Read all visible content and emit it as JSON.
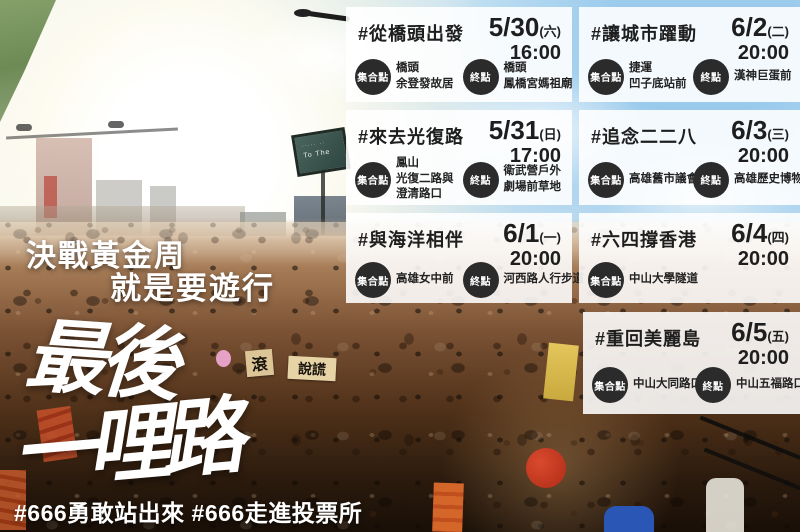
{
  "poster": {
    "headline_line1": "決戰黃金周",
    "headline_line2": "就是要遊行",
    "calligraphy_line1": "最後",
    "calligraphy_line2": "一哩路",
    "hashtags": "#666勇敢站出來 #666走進投票所"
  },
  "labels": {
    "meet": "集合點",
    "end": "終點"
  },
  "cards": [
    {
      "title": "#從橋頭出發",
      "date": "5/30",
      "weekday": "(六)",
      "time": "16:00",
      "meet": "橋頭\n余登發故居",
      "end": "橋頭\n鳳橋宮媽祖廟"
    },
    {
      "title": "#讓城市躍動",
      "date": "6/2",
      "weekday": "(二)",
      "time": "20:00",
      "meet": "捷運\n凹子底站前",
      "end": "漢神巨蛋前"
    },
    {
      "title": "#來去光復路",
      "date": "5/31",
      "weekday": "(日)",
      "time": "17:00",
      "meet": "鳳山\n光復二路與\n澄清路口",
      "end": "衛武營戶外\n劇場前草地"
    },
    {
      "title": "#追念二二八",
      "date": "6/3",
      "weekday": "(三)",
      "time": "20:00",
      "meet": "高雄舊市議會前",
      "end": "高雄歷史博物館"
    },
    {
      "title": "#與海洋相伴",
      "date": "6/1",
      "weekday": "(一)",
      "time": "20:00",
      "meet": "高雄女中前",
      "end": "河西路人行步道"
    },
    {
      "title": "#六四撐香港",
      "date": "6/4",
      "weekday": "(四)",
      "time": "20:00",
      "meet": "中山大學隧道",
      "end": ""
    },
    {
      "title": "#重回美麗島",
      "date": "6/5",
      "weekday": "(五)",
      "time": "20:00",
      "meet": "中山大同路口",
      "end": "中山五福路口"
    }
  ],
  "photo": {
    "crowd_signs": {
      "sign1": "滾",
      "sign2": "說謊"
    },
    "road_sign_text": "To The",
    "colors": {
      "sky": "#bddcf0",
      "sun": "#ffffff",
      "crowd_warm": "#a67c57",
      "crowd_dark": "#190f07",
      "card_bg": "#ffffff",
      "badge": "#2b2b2b",
      "banner_orange": "#d4662a",
      "banner_red": "#b02b16"
    }
  }
}
